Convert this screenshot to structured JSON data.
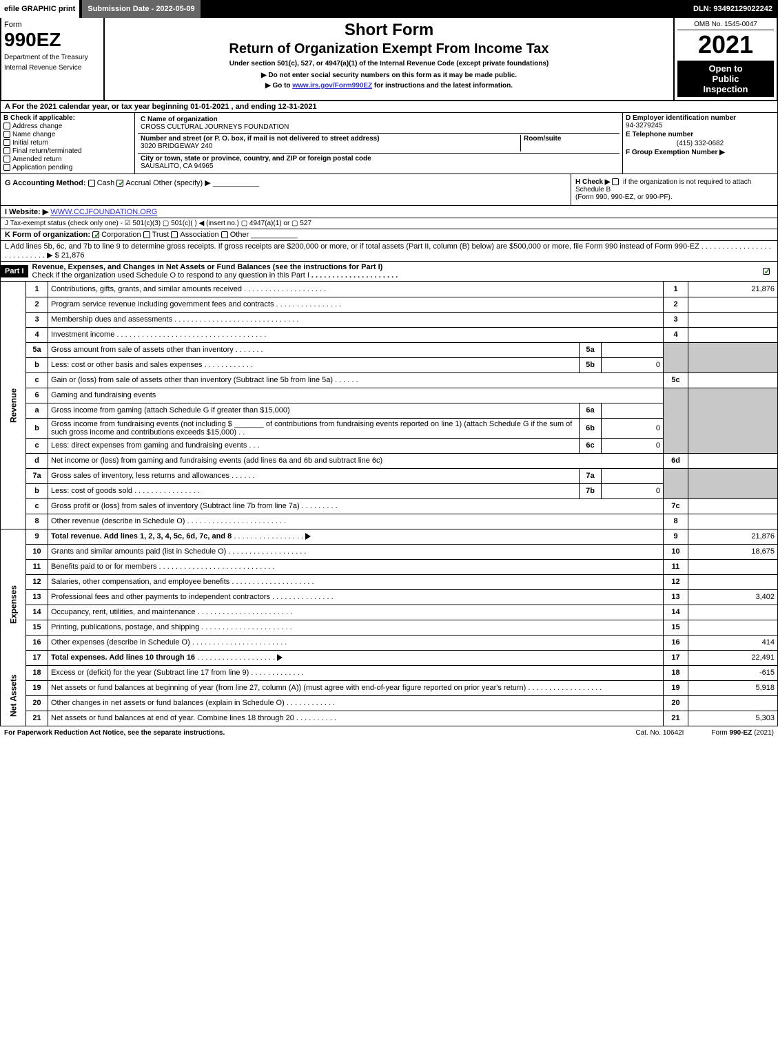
{
  "top_bar": {
    "efile": "efile GRAPHIC print",
    "submission": "Submission Date - 2022-05-09",
    "dln": "DLN: 93492129022242"
  },
  "header": {
    "form_label": "Form",
    "form_number": "990EZ",
    "dept1": "Department of the Treasury",
    "dept2": "Internal Revenue Service",
    "title1": "Short Form",
    "title2": "Return of Organization Exempt From Income Tax",
    "sub1": "Under section 501(c), 527, or 4947(a)(1) of the Internal Revenue Code (except private foundations)",
    "sub2": "▶ Do not enter social security numbers on this form as it may be made public.",
    "sub3_pre": "▶ Go to ",
    "sub3_link": "www.irs.gov/Form990EZ",
    "sub3_post": " for instructions and the latest information.",
    "omb": "OMB No. 1545-0047",
    "year": "2021",
    "open1": "Open to",
    "open2": "Public",
    "open3": "Inspection"
  },
  "row_a": "A  For the 2021 calendar year, or tax year beginning 01-01-2021 , and ending 12-31-2021",
  "col_b": {
    "label": "B",
    "hdr": "Check if applicable:",
    "items": [
      "Address change",
      "Name change",
      "Initial return",
      "Final return/terminated",
      "Amended return",
      "Application pending"
    ]
  },
  "col_c": {
    "label_c": "C",
    "name_lbl": "Name of organization",
    "name": "CROSS CULTURAL JOURNEYS FOUNDATION",
    "addr_lbl": "Number and street (or P. O. box, if mail is not delivered to street address)",
    "addr": "3020 BRIDGEWAY 240",
    "room_lbl": "Room/suite",
    "room": "",
    "city_lbl": "City or town, state or province, country, and ZIP or foreign postal code",
    "city": "SAUSALITO, CA  94965"
  },
  "col_def": {
    "d_lbl": "D Employer identification number",
    "d_val": "94-3279245",
    "e_lbl": "E Telephone number",
    "e_val": "(415) 332-0682",
    "f_lbl": "F Group Exemption Number  ▶"
  },
  "row_g": {
    "lbl": "G Accounting Method:",
    "cash": "Cash",
    "accrual": "Accrual",
    "other": "Other (specify) ▶"
  },
  "row_h": {
    "text1": "H  Check ▶ ",
    "text2": " if the organization is not required to attach Schedule B",
    "text3": "(Form 990, 990-EZ, or 990-PF)."
  },
  "row_i": {
    "lbl": "I Website: ▶",
    "val": "WWW.CCJFOUNDATION.ORG"
  },
  "row_j": "J Tax-exempt status (check only one) - ☑ 501(c)(3)  ▢ 501(c)(  ) ◀ (insert no.)  ▢ 4947(a)(1) or  ▢ 527",
  "row_k": {
    "lbl": "K Form of organization:",
    "opts": [
      "Corporation",
      "Trust",
      "Association",
      "Other"
    ],
    "checked": 0
  },
  "row_l": {
    "text": "L Add lines 5b, 6c, and 7b to line 9 to determine gross receipts. If gross receipts are $200,000 or more, or if total assets (Part II, column (B) below) are $500,000 or more, file Form 990 instead of Form 990-EZ",
    "amt": "▶ $ 21,876"
  },
  "part1": {
    "label": "Part I",
    "title": "Revenue, Expenses, and Changes in Net Assets or Fund Balances (see the instructions for Part I)",
    "check_text": "Check if the organization used Schedule O to respond to any question in this Part I"
  },
  "sections": {
    "revenue": "Revenue",
    "expenses": "Expenses",
    "netassets": "Net Assets"
  },
  "lines": {
    "l1": {
      "num": "1",
      "desc": "Contributions, gifts, grants, and similar amounts received",
      "box": "1",
      "amt": "21,876"
    },
    "l2": {
      "num": "2",
      "desc": "Program service revenue including government fees and contracts",
      "box": "2",
      "amt": ""
    },
    "l3": {
      "num": "3",
      "desc": "Membership dues and assessments",
      "box": "3",
      "amt": ""
    },
    "l4": {
      "num": "4",
      "desc": "Investment income",
      "box": "4",
      "amt": ""
    },
    "l5a": {
      "num": "5a",
      "desc": "Gross amount from sale of assets other than inventory",
      "sub": "5a",
      "sval": ""
    },
    "l5b": {
      "num": "b",
      "desc": "Less: cost or other basis and sales expenses",
      "sub": "5b",
      "sval": "0"
    },
    "l5c": {
      "num": "c",
      "desc": "Gain or (loss) from sale of assets other than inventory (Subtract line 5b from line 5a)",
      "box": "5c",
      "amt": ""
    },
    "l6": {
      "num": "6",
      "desc": "Gaming and fundraising events"
    },
    "l6a": {
      "num": "a",
      "desc": "Gross income from gaming (attach Schedule G if greater than $15,000)",
      "sub": "6a",
      "sval": ""
    },
    "l6b": {
      "num": "b",
      "desc1": "Gross income from fundraising events (not including $",
      "desc2": "of contributions from fundraising events reported on line 1) (attach Schedule G if the sum of such gross income and contributions exceeds $15,000)",
      "sub": "6b",
      "sval": "0"
    },
    "l6c": {
      "num": "c",
      "desc": "Less: direct expenses from gaming and fundraising events",
      "sub": "6c",
      "sval": "0"
    },
    "l6d": {
      "num": "d",
      "desc": "Net income or (loss) from gaming and fundraising events (add lines 6a and 6b and subtract line 6c)",
      "box": "6d",
      "amt": ""
    },
    "l7a": {
      "num": "7a",
      "desc": "Gross sales of inventory, less returns and allowances",
      "sub": "7a",
      "sval": ""
    },
    "l7b": {
      "num": "b",
      "desc": "Less: cost of goods sold",
      "sub": "7b",
      "sval": "0"
    },
    "l7c": {
      "num": "c",
      "desc": "Gross profit or (loss) from sales of inventory (Subtract line 7b from line 7a)",
      "box": "7c",
      "amt": ""
    },
    "l8": {
      "num": "8",
      "desc": "Other revenue (describe in Schedule O)",
      "box": "8",
      "amt": ""
    },
    "l9": {
      "num": "9",
      "desc": "Total revenue. Add lines 1, 2, 3, 4, 5c, 6d, 7c, and 8",
      "box": "9",
      "amt": "21,876"
    },
    "l10": {
      "num": "10",
      "desc": "Grants and similar amounts paid (list in Schedule O)",
      "box": "10",
      "amt": "18,675"
    },
    "l11": {
      "num": "11",
      "desc": "Benefits paid to or for members",
      "box": "11",
      "amt": ""
    },
    "l12": {
      "num": "12",
      "desc": "Salaries, other compensation, and employee benefits",
      "box": "12",
      "amt": ""
    },
    "l13": {
      "num": "13",
      "desc": "Professional fees and other payments to independent contractors",
      "box": "13",
      "amt": "3,402"
    },
    "l14": {
      "num": "14",
      "desc": "Occupancy, rent, utilities, and maintenance",
      "box": "14",
      "amt": ""
    },
    "l15": {
      "num": "15",
      "desc": "Printing, publications, postage, and shipping",
      "box": "15",
      "amt": ""
    },
    "l16": {
      "num": "16",
      "desc": "Other expenses (describe in Schedule O)",
      "box": "16",
      "amt": "414"
    },
    "l17": {
      "num": "17",
      "desc": "Total expenses. Add lines 10 through 16",
      "box": "17",
      "amt": "22,491"
    },
    "l18": {
      "num": "18",
      "desc": "Excess or (deficit) for the year (Subtract line 17 from line 9)",
      "box": "18",
      "amt": "-615"
    },
    "l19": {
      "num": "19",
      "desc": "Net assets or fund balances at beginning of year (from line 27, column (A)) (must agree with end-of-year figure reported on prior year's return)",
      "box": "19",
      "amt": "5,918"
    },
    "l20": {
      "num": "20",
      "desc": "Other changes in net assets or fund balances (explain in Schedule O)",
      "box": "20",
      "amt": ""
    },
    "l21": {
      "num": "21",
      "desc": "Net assets or fund balances at end of year. Combine lines 18 through 20",
      "box": "21",
      "amt": "5,303"
    }
  },
  "footer": {
    "left": "For Paperwork Reduction Act Notice, see the separate instructions.",
    "mid": "Cat. No. 10642I",
    "right_pre": "Form ",
    "right_bold": "990-EZ",
    "right_post": " (2021)"
  }
}
